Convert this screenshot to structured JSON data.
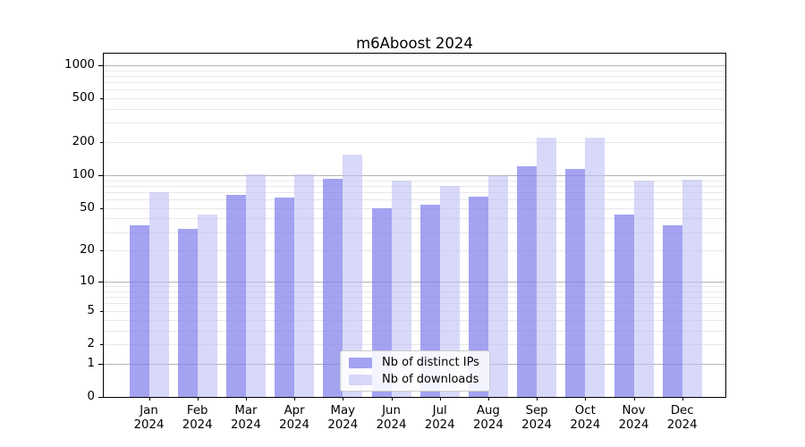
{
  "chart_data": {
    "type": "bar",
    "title": "m6Aboost 2024",
    "categories": [
      "Jan 2024",
      "Feb 2024",
      "Mar 2024",
      "Apr 2024",
      "May 2024",
      "Jun 2024",
      "Jul 2024",
      "Aug 2024",
      "Sep 2024",
      "Oct 2024",
      "Nov 2024",
      "Dec 2024"
    ],
    "series": [
      {
        "name": "Nb of distinct IPs",
        "values": [
          35,
          32,
          66,
          62,
          93,
          50,
          54,
          64,
          121,
          114,
          44,
          35
        ],
        "color_hex": "#8080ec",
        "color_alpha": 0.72
      },
      {
        "name": "Nb of downloads",
        "values": [
          70,
          44,
          102,
          102,
          155,
          90,
          80,
          98,
          220,
          220,
          89,
          91
        ],
        "color_hex": "#bebef5",
        "color_alpha": 0.6
      }
    ],
    "xlabel": "",
    "ylabel": "",
    "y_axis": {
      "scale": "log1p",
      "tick_values": [
        1000,
        500,
        200,
        100,
        50,
        20,
        10,
        5,
        2,
        1,
        0
      ],
      "major_gridline_values": [
        1,
        10,
        100,
        1000
      ],
      "ylim": [
        0,
        1290
      ],
      "grid": "on"
    },
    "legend": {
      "position": "lower center"
    },
    "colors": {
      "grid_major": "#b3b3b3",
      "grid_minor": "#e8e8e8",
      "axis_and_text": "#000000",
      "background": "#ffffff"
    }
  }
}
